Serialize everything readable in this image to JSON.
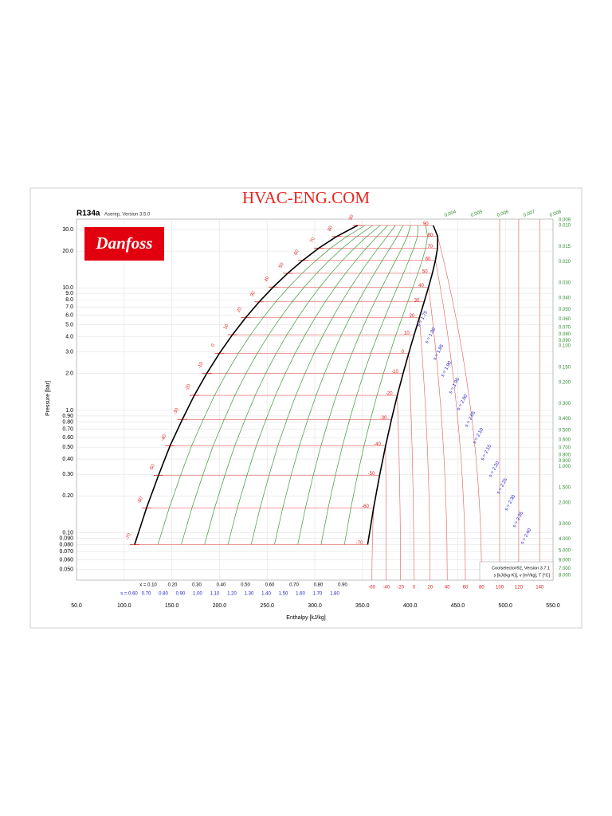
{
  "chart_data": {
    "type": "ph-diagram",
    "title": "HVAC-ENG.COM",
    "refrigerant": "R134a",
    "version": "Aserep, Version 3.5.0",
    "logo": "Danfoss",
    "software": "Coolselector®2, Version 3.7.1",
    "units_note": "s [kJ/(kg·K)], v [m³/kg], T [°C]",
    "xlabel": "Enthalpy [kJ/kg]",
    "ylabel": "Pressure [bar]",
    "log_y": true,
    "grid": true,
    "xlim": [
      50,
      550
    ],
    "ylim": [
      0.041,
      36.5
    ],
    "xticks": [
      {
        "value": 50,
        "label": "50.0"
      },
      {
        "value": 100,
        "label": "100.0"
      },
      {
        "value": 150,
        "label": "150.0"
      },
      {
        "value": 200,
        "label": "200.0"
      },
      {
        "value": 250,
        "label": "250.0"
      },
      {
        "value": 300,
        "label": "300.0"
      },
      {
        "value": 350,
        "label": "350.0"
      },
      {
        "value": 400,
        "label": "400.0"
      },
      {
        "value": 450,
        "label": "450.0"
      },
      {
        "value": 500,
        "label": "500.0"
      },
      {
        "value": 550,
        "label": "550.0"
      }
    ],
    "yticks": [
      {
        "value": 30,
        "label": "30.0"
      },
      {
        "value": 20,
        "label": "20.0"
      },
      {
        "value": 10,
        "label": "10.0"
      },
      {
        "value": 9,
        "label": "9.0"
      },
      {
        "value": 8,
        "label": "8.0"
      },
      {
        "value": 7,
        "label": "7.0"
      },
      {
        "value": 6,
        "label": "6.0"
      },
      {
        "value": 5,
        "label": "5.0"
      },
      {
        "value": 4,
        "label": "4.0"
      },
      {
        "value": 3,
        "label": "3.0"
      },
      {
        "value": 2,
        "label": "2.0"
      },
      {
        "value": 1,
        "label": "1.0"
      },
      {
        "value": 0.9,
        "label": "0.90"
      },
      {
        "value": 0.8,
        "label": "0.80"
      },
      {
        "value": 0.7,
        "label": "0.70"
      },
      {
        "value": 0.6,
        "label": "0.60"
      },
      {
        "value": 0.5,
        "label": "0.50"
      },
      {
        "value": 0.4,
        "label": "0.40"
      },
      {
        "value": 0.3,
        "label": "0.30"
      },
      {
        "value": 0.2,
        "label": "0.20"
      },
      {
        "value": 0.1,
        "label": "0.10"
      },
      {
        "value": 0.09,
        "label": "0.090"
      },
      {
        "value": 0.08,
        "label": "0.080"
      },
      {
        "value": 0.07,
        "label": "0.070"
      },
      {
        "value": 0.06,
        "label": "0.060"
      },
      {
        "value": 0.05,
        "label": "0.050"
      }
    ],
    "saturation": {
      "t": [
        -70,
        -60,
        -50,
        -40,
        -30,
        -20,
        -10,
        0,
        10,
        20,
        30,
        40,
        50,
        60,
        70,
        80,
        90
      ],
      "p": [
        0.08,
        0.159,
        0.294,
        0.512,
        0.844,
        1.327,
        2.006,
        2.928,
        4.146,
        5.717,
        7.702,
        10.17,
        13.18,
        16.82,
        21.17,
        26.33,
        32.44
      ],
      "h_liquid": [
        111,
        123.4,
        136,
        148.1,
        161.1,
        173.6,
        186.7,
        200,
        213.6,
        227.5,
        241.7,
        256.4,
        271.6,
        287.5,
        304.3,
        322.9,
        344.9
      ],
      "h_vapor": [
        355.5,
        361.7,
        368,
        374.3,
        380.5,
        386.6,
        392.7,
        398.6,
        404.3,
        409.8,
        414.8,
        419.4,
        423.4,
        426.6,
        428.8,
        429,
        424.3
      ]
    },
    "quality": [
      {
        "value": 0.1,
        "label": "x = 0.10"
      },
      {
        "value": 0.2,
        "label": "0.20"
      },
      {
        "value": 0.3,
        "label": "0.30"
      },
      {
        "value": 0.4,
        "label": "0.40"
      },
      {
        "value": 0.5,
        "label": "0.50"
      },
      {
        "value": 0.6,
        "label": "0.60"
      },
      {
        "value": 0.7,
        "label": "0.70"
      },
      {
        "value": 0.8,
        "label": "0.80"
      },
      {
        "value": 0.9,
        "label": "0.90"
      }
    ],
    "entropy_bottom": [
      {
        "value": 0.6,
        "label": "s = 0.60"
      },
      {
        "value": 0.7,
        "label": "0.70"
      },
      {
        "value": 0.8,
        "label": "0.80"
      },
      {
        "value": 0.9,
        "label": "0.90"
      },
      {
        "value": 1.0,
        "label": "1.00"
      },
      {
        "value": 1.1,
        "label": "1.10"
      },
      {
        "value": 1.2,
        "label": "1.20"
      },
      {
        "value": 1.3,
        "label": "1.30"
      },
      {
        "value": 1.4,
        "label": "1.40"
      },
      {
        "value": 1.5,
        "label": "1.50"
      },
      {
        "value": 1.6,
        "label": "1.60"
      },
      {
        "value": 1.7,
        "label": "1.70"
      },
      {
        "value": 1.8,
        "label": "1.80"
      }
    ],
    "entropy_superheat": [
      {
        "value": 1.75,
        "label": "s = 1.75"
      },
      {
        "value": 1.8,
        "label": "s = 1.80"
      },
      {
        "value": 1.85,
        "label": "s = 1.85"
      },
      {
        "value": 1.9,
        "label": "s = 1.90"
      },
      {
        "value": 1.95,
        "label": "s = 1.95"
      },
      {
        "value": 2.0,
        "label": "s = 2.00"
      },
      {
        "value": 2.05,
        "label": "s = 2.05"
      },
      {
        "value": 2.1,
        "label": "s = 2.10"
      },
      {
        "value": 2.15,
        "label": "s = 2.15"
      },
      {
        "value": 2.2,
        "label": "s = 2.20"
      },
      {
        "value": 2.25,
        "label": "s = 2.25"
      },
      {
        "value": 2.3,
        "label": "s = 2.30"
      },
      {
        "value": 2.35,
        "label": "s = 2.35"
      },
      {
        "value": 2.4,
        "label": "s = 2.40"
      }
    ],
    "superheat_isotherms": {
      "t": [
        -60,
        -40,
        -20,
        0,
        20,
        40,
        60,
        80,
        100,
        120,
        140
      ],
      "h_at_min_pressure": [
        360,
        375,
        390,
        404,
        421,
        439,
        458,
        475,
        494,
        514,
        536
      ]
    },
    "volumes": [
      {
        "value": 0.004,
        "label": "0.004"
      },
      {
        "value": 0.005,
        "label": "0.005"
      },
      {
        "value": 0.006,
        "label": "0.006"
      },
      {
        "value": 0.007,
        "label": "0.007"
      },
      {
        "value": 0.008,
        "label": "0.008"
      },
      {
        "value": 0.009,
        "label": "0.009"
      },
      {
        "value": 0.01,
        "label": "0.010"
      },
      {
        "value": 0.015,
        "label": "0.015"
      },
      {
        "value": 0.02,
        "label": "0.020"
      },
      {
        "value": 0.03,
        "label": "0.030"
      },
      {
        "value": 0.04,
        "label": "0.040"
      },
      {
        "value": 0.05,
        "label": "0.050"
      },
      {
        "value": 0.06,
        "label": "0.060"
      },
      {
        "value": 0.07,
        "label": "0.070"
      },
      {
        "value": 0.08,
        "label": "0.080"
      },
      {
        "value": 0.09,
        "label": "0.090"
      },
      {
        "value": 0.1,
        "label": "0.100"
      },
      {
        "value": 0.15,
        "label": "0.150"
      },
      {
        "value": 0.2,
        "label": "0.200"
      },
      {
        "value": 0.3,
        "label": "0.300"
      },
      {
        "value": 0.4,
        "label": "0.400"
      },
      {
        "value": 0.5,
        "label": "0.500"
      },
      {
        "value": 0.6,
        "label": "0.600"
      },
      {
        "value": 0.7,
        "label": "0.700"
      },
      {
        "value": 0.8,
        "label": "0.800"
      },
      {
        "value": 0.9,
        "label": "0.900"
      },
      {
        "value": 1.0,
        "label": "1.000"
      },
      {
        "value": 1.5,
        "label": "1.500"
      },
      {
        "value": 2.0,
        "label": "2.000"
      },
      {
        "value": 3.0,
        "label": "3.000"
      },
      {
        "value": 4.0,
        "label": "4.000"
      },
      {
        "value": 5.0,
        "label": "5.000"
      },
      {
        "value": 6.0,
        "label": "6.000"
      },
      {
        "value": 7.0,
        "label": "7.000"
      },
      {
        "value": 8.0,
        "label": "8.000"
      }
    ]
  }
}
